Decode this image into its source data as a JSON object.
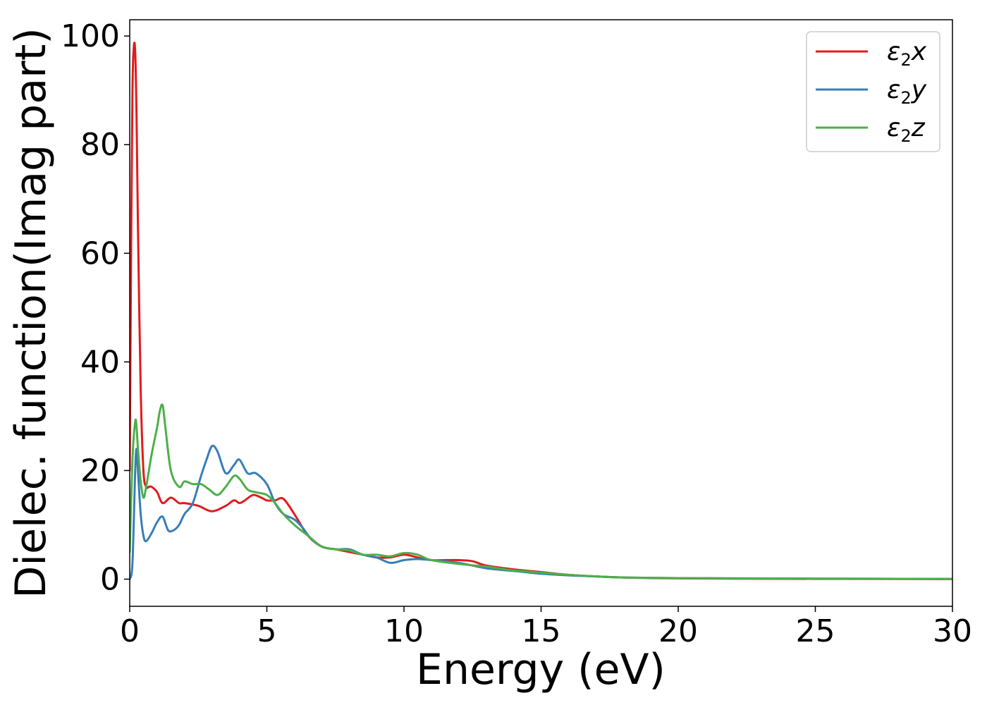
{
  "chart_data": {
    "type": "line",
    "xlabel": "Energy (eV)",
    "ylabel": "Dielec. function(Imag part)",
    "xlim": [
      0,
      30
    ],
    "ylim": [
      -5,
      103
    ],
    "xticks": [
      0,
      5,
      10,
      15,
      20,
      25,
      30
    ],
    "yticks": [
      0,
      20,
      40,
      60,
      80,
      100
    ],
    "grid": false,
    "legend_position": "top-right",
    "series": [
      {
        "name": "ε₂x",
        "legend_base": "ε",
        "legend_sub": "2",
        "legend_suffix": "x",
        "color": "#e41a1c",
        "x": [
          0,
          0.05,
          0.1,
          0.15,
          0.2,
          0.25,
          0.3,
          0.4,
          0.5,
          0.6,
          0.7,
          0.8,
          1.0,
          1.2,
          1.5,
          1.8,
          2.0,
          2.5,
          3.0,
          3.5,
          3.8,
          4.0,
          4.2,
          4.5,
          4.8,
          5.0,
          5.3,
          5.6,
          6.0,
          6.5,
          7.0,
          7.5,
          8.0,
          8.5,
          9.0,
          9.5,
          10.0,
          10.5,
          11.0,
          11.5,
          12.0,
          12.5,
          13.0,
          14.0,
          15.0,
          16.0,
          17.0,
          18.0,
          19.0,
          20.0,
          22.0,
          25.0,
          28.0,
          30.0
        ],
        "values": [
          20,
          60,
          90,
          98,
          97,
          85,
          65,
          35,
          20,
          17,
          17,
          17,
          16,
          14,
          15,
          14,
          14,
          13.5,
          12.5,
          13.5,
          14.5,
          14,
          14.5,
          15.5,
          15,
          14.5,
          14.5,
          14.8,
          12,
          8,
          6,
          5.5,
          5,
          4.5,
          4,
          4,
          4.5,
          4,
          3.5,
          3.5,
          3.5,
          3.3,
          2.5,
          1.8,
          1.3,
          0.8,
          0.5,
          0.3,
          0.2,
          0.15,
          0.1,
          0.05,
          0.03,
          0.02
        ]
      },
      {
        "name": "ε₂y",
        "legend_base": "ε",
        "legend_sub": "2",
        "legend_suffix": "y",
        "color": "#377eb8",
        "x": [
          0,
          0.1,
          0.2,
          0.25,
          0.3,
          0.4,
          0.5,
          0.6,
          0.8,
          1.0,
          1.2,
          1.4,
          1.6,
          1.8,
          2.0,
          2.3,
          2.6,
          2.8,
          3.0,
          3.2,
          3.5,
          3.8,
          4.0,
          4.3,
          4.6,
          5.0,
          5.3,
          5.6,
          6.0,
          6.3,
          6.6,
          7.0,
          7.5,
          8.0,
          8.5,
          9.0,
          9.5,
          10.0,
          10.5,
          11.0,
          12.0,
          13.0,
          14.0,
          15.0,
          16.0,
          17.0,
          18.0,
          20.0,
          22.0,
          25.0,
          30.0
        ],
        "values": [
          0,
          3,
          20,
          24,
          20,
          12,
          8,
          7,
          8.5,
          10.5,
          11.5,
          9,
          9,
          10,
          12,
          14,
          19,
          22,
          24.5,
          23.5,
          19.5,
          21,
          22,
          19.5,
          19.5,
          17.5,
          14,
          12,
          11,
          9.5,
          7.5,
          6,
          5.5,
          5.5,
          4.5,
          4,
          3,
          3.5,
          3.7,
          3.5,
          3,
          2,
          1.5,
          1,
          0.7,
          0.5,
          0.3,
          0.2,
          0.15,
          0.1,
          0.05
        ]
      },
      {
        "name": "ε₂z",
        "legend_base": "ε",
        "legend_sub": "2",
        "legend_suffix": "z",
        "color": "#4daf4a",
        "x": [
          0,
          0.1,
          0.2,
          0.25,
          0.3,
          0.4,
          0.5,
          0.6,
          0.8,
          1.0,
          1.1,
          1.2,
          1.3,
          1.5,
          1.8,
          2.0,
          2.3,
          2.6,
          2.9,
          3.2,
          3.5,
          3.8,
          4.0,
          4.3,
          4.6,
          5.0,
          5.3,
          5.6,
          6.0,
          6.5,
          7.0,
          7.5,
          8.0,
          8.5,
          9.0,
          9.5,
          10.0,
          10.5,
          11.0,
          12.0,
          13.0,
          14.0,
          15.0,
          16.0,
          17.0,
          18.0,
          20.0,
          22.0,
          25.0,
          30.0
        ],
        "values": [
          5,
          22,
          29,
          28,
          24,
          18,
          15,
          17,
          23,
          28,
          31,
          32,
          28,
          20,
          17,
          18,
          17.5,
          17.5,
          16.5,
          15.5,
          17,
          19,
          18.5,
          16.5,
          16,
          15.5,
          14,
          12,
          10,
          8,
          6,
          5.5,
          5.3,
          4.5,
          4.5,
          4.2,
          4.8,
          4.5,
          3.5,
          2.8,
          2.3,
          1.6,
          1.2,
          0.8,
          0.5,
          0.3,
          0.2,
          0.15,
          0.1,
          0.05
        ]
      }
    ]
  }
}
